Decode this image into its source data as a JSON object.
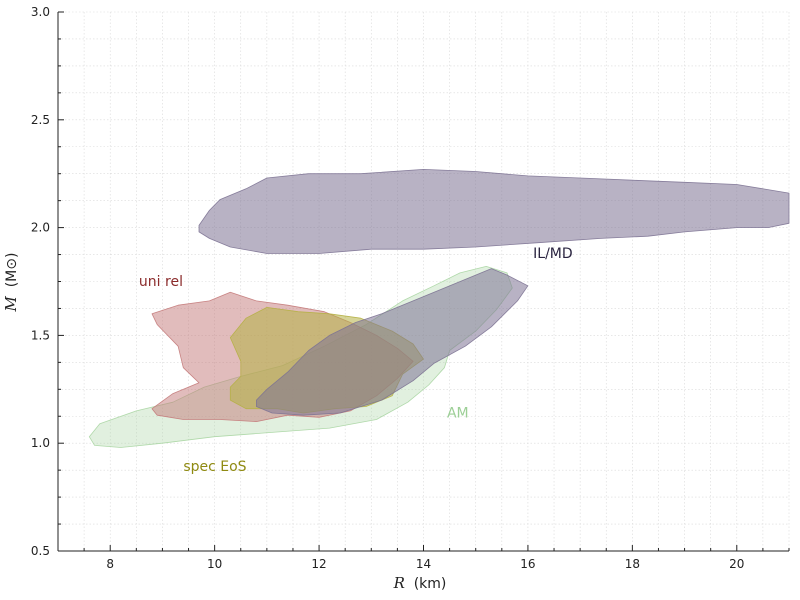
{
  "chart_data": {
    "type": "area",
    "xlabel_var": "R",
    "xlabel_unit": "(km)",
    "ylabel_var": "M",
    "ylabel_unit": "(M⊙)",
    "xlim": [
      7,
      21
    ],
    "ylim": [
      0.5,
      3.0
    ],
    "xticks": [
      8,
      10,
      12,
      14,
      16,
      18,
      20
    ],
    "xtick_labels": [
      "8",
      "10",
      "12",
      "14",
      "16",
      "18",
      "20"
    ],
    "yticks": [
      0.5,
      1.0,
      1.5,
      2.0,
      2.5,
      3.0
    ],
    "ytick_labels": [
      "0.5",
      "1.0",
      "1.5",
      "2.0",
      "2.5",
      "3.0"
    ],
    "grid": true,
    "legend": "none",
    "series": [
      {
        "name": "AM",
        "color": "#a8d5a2",
        "fill_opacity": 0.35,
        "label_at": [
          14.45,
          1.12
        ],
        "polygon": [
          [
            7.6,
            1.03
          ],
          [
            7.8,
            1.09
          ],
          [
            8.5,
            1.15
          ],
          [
            9.2,
            1.19
          ],
          [
            9.8,
            1.26
          ],
          [
            10.5,
            1.31
          ],
          [
            11.3,
            1.36
          ],
          [
            12.1,
            1.45
          ],
          [
            12.9,
            1.55
          ],
          [
            13.6,
            1.66
          ],
          [
            14.2,
            1.73
          ],
          [
            14.7,
            1.79
          ],
          [
            15.2,
            1.82
          ],
          [
            15.6,
            1.79
          ],
          [
            15.7,
            1.72
          ],
          [
            15.4,
            1.62
          ],
          [
            15.0,
            1.52
          ],
          [
            14.5,
            1.43
          ],
          [
            14.4,
            1.35
          ],
          [
            14.1,
            1.27
          ],
          [
            13.7,
            1.19
          ],
          [
            13.1,
            1.11
          ],
          [
            12.2,
            1.07
          ],
          [
            11.1,
            1.05
          ],
          [
            10.0,
            1.03
          ],
          [
            9.0,
            1.0
          ],
          [
            8.2,
            0.98
          ],
          [
            7.7,
            0.99
          ]
        ]
      },
      {
        "name": "uni rel",
        "color": "#c47a7a",
        "fill_opacity": 0.5,
        "label_at": [
          8.55,
          1.73
        ],
        "polygon": [
          [
            8.8,
            1.6
          ],
          [
            9.3,
            1.64
          ],
          [
            9.9,
            1.66
          ],
          [
            10.3,
            1.7
          ],
          [
            10.8,
            1.66
          ],
          [
            11.4,
            1.64
          ],
          [
            12.1,
            1.61
          ],
          [
            12.6,
            1.56
          ],
          [
            13.1,
            1.5
          ],
          [
            13.5,
            1.44
          ],
          [
            13.8,
            1.38
          ],
          [
            13.5,
            1.3
          ],
          [
            13.1,
            1.22
          ],
          [
            12.6,
            1.15
          ],
          [
            12.0,
            1.12
          ],
          [
            11.4,
            1.13
          ],
          [
            10.8,
            1.1
          ],
          [
            10.1,
            1.11
          ],
          [
            9.4,
            1.11
          ],
          [
            8.9,
            1.13
          ],
          [
            8.8,
            1.16
          ],
          [
            9.2,
            1.23
          ],
          [
            9.7,
            1.28
          ],
          [
            9.4,
            1.35
          ],
          [
            9.3,
            1.45
          ],
          [
            8.9,
            1.55
          ]
        ]
      },
      {
        "name": "spec EoS",
        "color": "#b5b044",
        "fill_opacity": 0.55,
        "label_at": [
          9.4,
          0.87
        ],
        "polygon": [
          [
            10.3,
            1.49
          ],
          [
            10.6,
            1.58
          ],
          [
            11.0,
            1.63
          ],
          [
            11.6,
            1.61
          ],
          [
            12.2,
            1.6
          ],
          [
            12.8,
            1.58
          ],
          [
            13.4,
            1.52
          ],
          [
            13.8,
            1.46
          ],
          [
            14.0,
            1.39
          ],
          [
            13.6,
            1.32
          ],
          [
            13.4,
            1.22
          ],
          [
            12.9,
            1.17
          ],
          [
            12.3,
            1.16
          ],
          [
            11.7,
            1.14
          ],
          [
            11.2,
            1.16
          ],
          [
            10.6,
            1.16
          ],
          [
            10.3,
            1.2
          ],
          [
            10.3,
            1.26
          ],
          [
            10.5,
            1.31
          ],
          [
            10.5,
            1.38
          ]
        ]
      },
      {
        "name": "IL/MD",
        "color": "#7d7394",
        "fill_opacity": 0.55,
        "label_at": [
          16.1,
          1.86
        ],
        "polygon": [
          [
            10.8,
            1.17
          ],
          [
            11.1,
            1.14
          ],
          [
            11.7,
            1.13
          ],
          [
            12.4,
            1.14
          ],
          [
            13.2,
            1.2
          ],
          [
            13.8,
            1.29
          ],
          [
            14.2,
            1.37
          ],
          [
            14.8,
            1.45
          ],
          [
            15.3,
            1.54
          ],
          [
            15.8,
            1.66
          ],
          [
            16.0,
            1.73
          ],
          [
            15.6,
            1.78
          ],
          [
            15.3,
            1.81
          ],
          [
            14.9,
            1.77
          ],
          [
            14.4,
            1.72
          ],
          [
            13.8,
            1.66
          ],
          [
            13.2,
            1.6
          ],
          [
            12.7,
            1.56
          ],
          [
            12.2,
            1.5
          ],
          [
            11.8,
            1.43
          ],
          [
            11.4,
            1.33
          ],
          [
            11.0,
            1.25
          ],
          [
            10.8,
            1.2
          ]
        ]
      },
      {
        "name": "IL/MD",
        "color": "#7d7394",
        "fill_opacity": 0.55,
        "polygon": [
          [
            9.7,
            2.01
          ],
          [
            9.9,
            2.08
          ],
          [
            10.1,
            2.13
          ],
          [
            10.6,
            2.18
          ],
          [
            11.0,
            2.23
          ],
          [
            11.8,
            2.25
          ],
          [
            12.8,
            2.25
          ],
          [
            14.0,
            2.27
          ],
          [
            15.0,
            2.26
          ],
          [
            16.0,
            2.24
          ],
          [
            17.0,
            2.23
          ],
          [
            18.0,
            2.22
          ],
          [
            19.0,
            2.21
          ],
          [
            20.0,
            2.2
          ],
          [
            21.0,
            2.16
          ],
          [
            21.0,
            2.02
          ],
          [
            20.6,
            2.0
          ],
          [
            20.0,
            2.0
          ],
          [
            19.0,
            1.98
          ],
          [
            18.3,
            1.96
          ],
          [
            17.4,
            1.95
          ],
          [
            16.2,
            1.93
          ],
          [
            15.0,
            1.91
          ],
          [
            14.0,
            1.9
          ],
          [
            13.0,
            1.9
          ],
          [
            12.0,
            1.88
          ],
          [
            11.0,
            1.88
          ],
          [
            10.3,
            1.91
          ],
          [
            9.9,
            1.95
          ],
          [
            9.7,
            1.98
          ]
        ]
      }
    ],
    "label_colors": {
      "AM": "#9ccf96",
      "uni rel": "#8b2b2b",
      "spec EoS": "#8f8a12",
      "IL/MD": "#2a2440"
    }
  }
}
